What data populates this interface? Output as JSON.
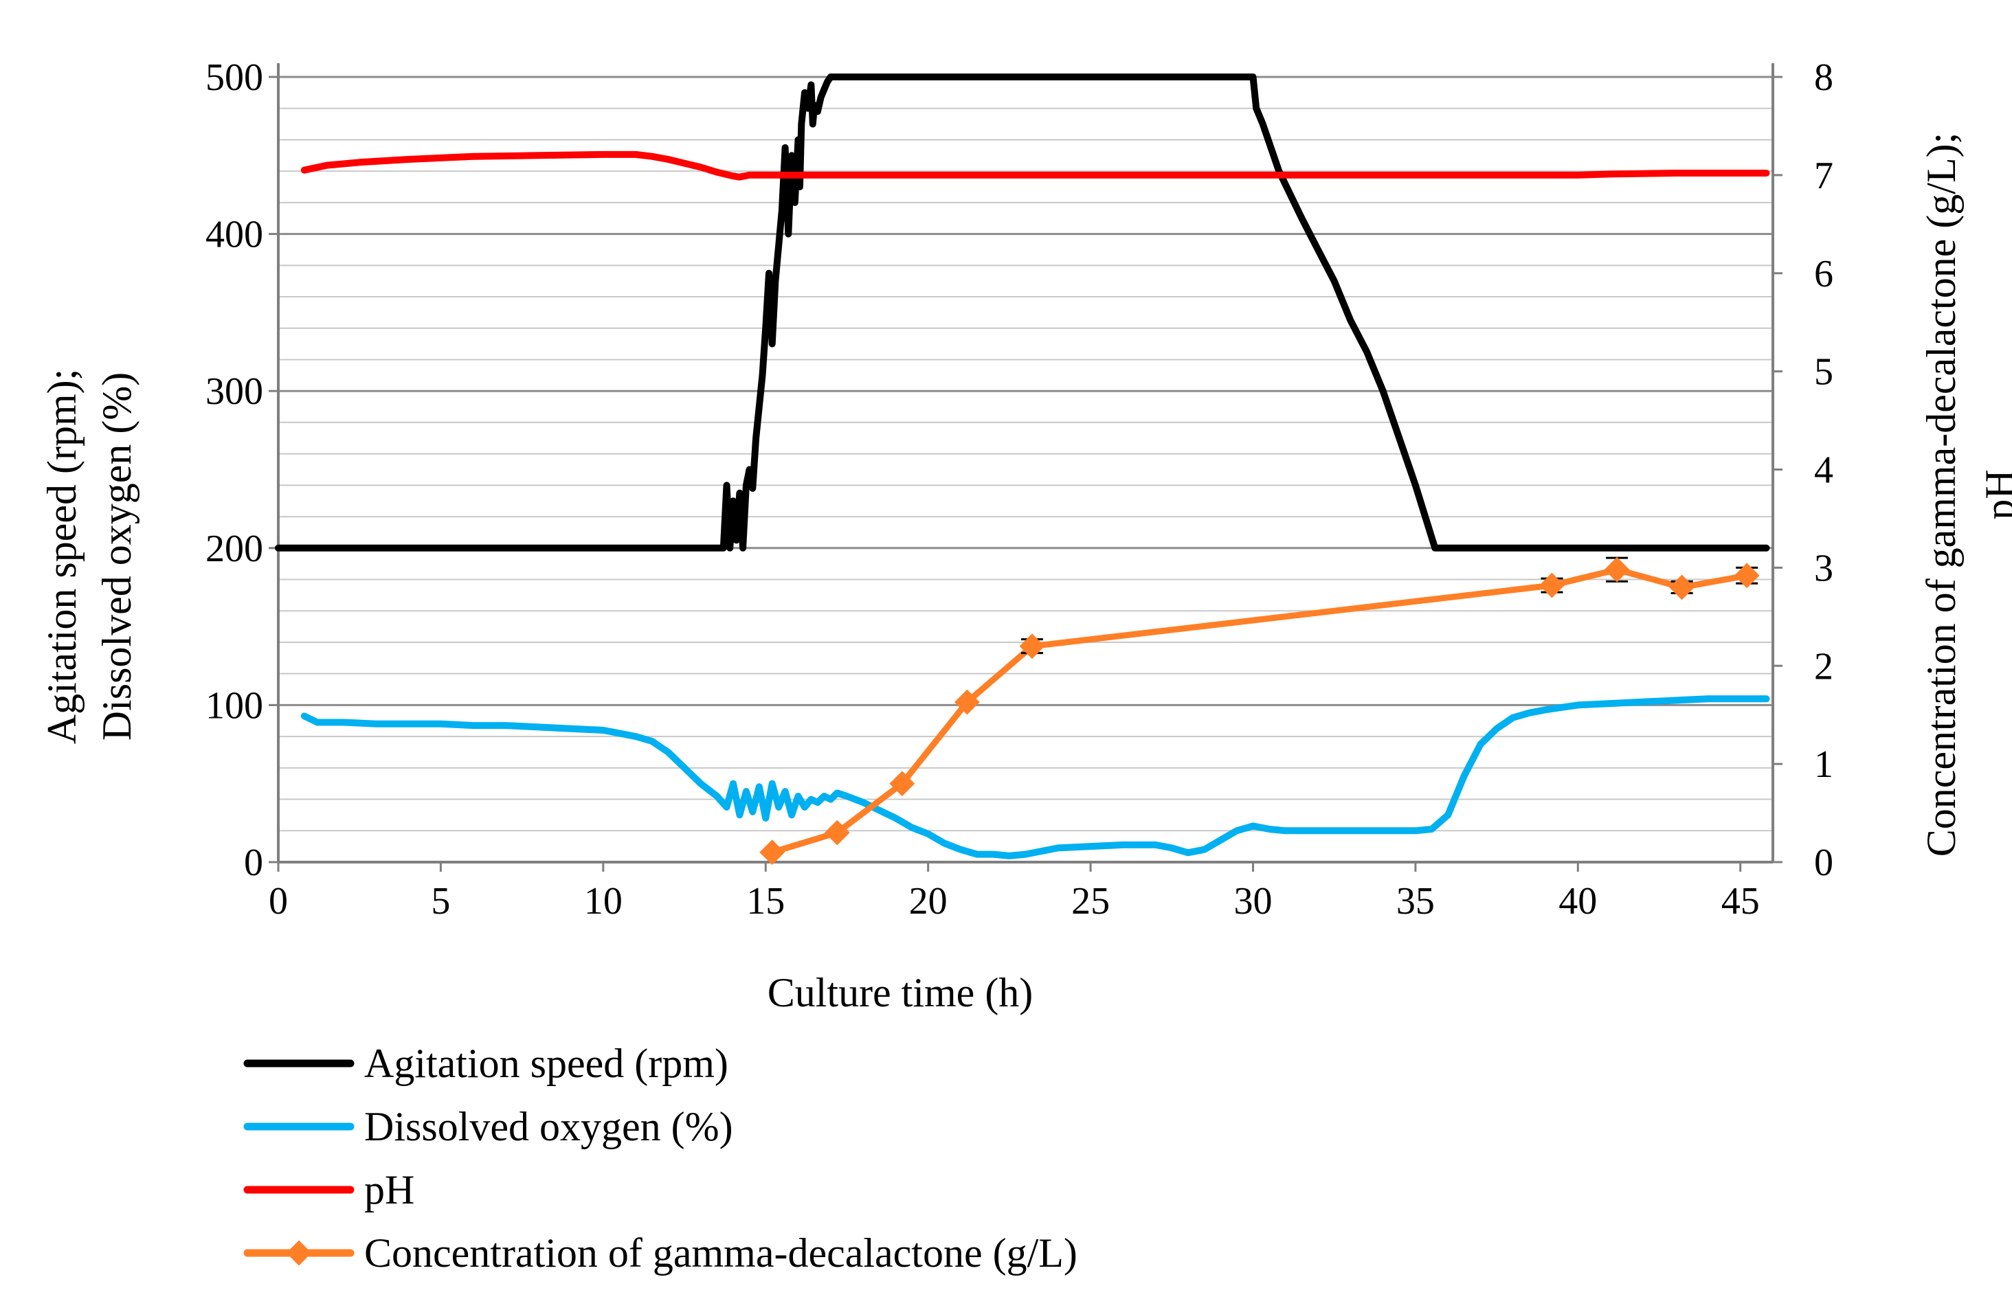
{
  "chart_data": {
    "type": "line",
    "title": "",
    "xlabel": "Culture time (h)",
    "ylabel_left": "Agitation speed (rpm); Dissolved oxygen (%)",
    "ylabel_left_lines": [
      "Agitation speed (rpm);",
      "Dissolved oxygen (%)"
    ],
    "ylabel_right": "Concentration of gamma-decalactone (g/L); pH",
    "ylabel_right_lines": [
      "Concentration of gamma-decalactone (g/L);",
      "pH"
    ],
    "xlim": [
      0,
      46
    ],
    "ylim_left": [
      0,
      500
    ],
    "ylim_right": [
      0,
      8
    ],
    "xticks": [
      0,
      5,
      10,
      15,
      20,
      25,
      30,
      35,
      40,
      45
    ],
    "yticks_left": [
      0,
      100,
      200,
      300,
      400,
      500
    ],
    "yticks_right": [
      0,
      1,
      2,
      3,
      4,
      5,
      6,
      7,
      8
    ],
    "grid": "horizontal",
    "legend_position": "bottom",
    "series": [
      {
        "name": "Agitation speed (rpm)",
        "axis": "left",
        "color": "#000000",
        "marker": "none",
        "x": [
          0,
          13.7,
          13.8,
          13.9,
          14.0,
          14.1,
          14.2,
          14.3,
          14.4,
          14.5,
          14.6,
          14.7,
          14.8,
          14.9,
          15.0,
          15.1,
          15.2,
          15.3,
          15.5,
          15.6,
          15.7,
          15.8,
          15.9,
          16.0,
          16.05,
          16.1,
          16.2,
          16.3,
          16.4,
          16.45,
          16.5,
          16.6,
          16.7,
          16.8,
          16.9,
          17.0,
          17.1,
          17.3,
          17.5,
          17.8,
          30.0,
          30.1,
          30.3,
          30.8,
          31.5,
          32.0,
          32.5,
          33.0,
          33.5,
          34.0,
          34.5,
          35.0,
          35.3,
          35.6,
          36.0,
          45.8
        ],
        "values": [
          200,
          200,
          240,
          200,
          230,
          205,
          235,
          200,
          240,
          250,
          238,
          270,
          290,
          310,
          340,
          375,
          330,
          370,
          415,
          455,
          400,
          450,
          420,
          460,
          430,
          470,
          490,
          480,
          495,
          470,
          482,
          478,
          487,
          492,
          497,
          500,
          500,
          500,
          500,
          500,
          500,
          480,
          470,
          440,
          410,
          390,
          370,
          345,
          325,
          300,
          270,
          240,
          220,
          200,
          200,
          200
        ]
      },
      {
        "name": "Dissolved oxygen (%)",
        "axis": "left",
        "color": "#00b0f0",
        "marker": "none",
        "x": [
          0.8,
          1.2,
          2,
          3,
          4,
          5,
          6,
          7,
          8,
          9,
          10,
          10.5,
          11,
          11.5,
          12,
          12.5,
          13,
          13.5,
          13.8,
          14.0,
          14.2,
          14.4,
          14.6,
          14.8,
          15.0,
          15.2,
          15.4,
          15.6,
          15.8,
          16.0,
          16.2,
          16.4,
          16.6,
          16.8,
          17.0,
          17.2,
          17.5,
          18,
          18.5,
          19,
          19.5,
          20,
          20.5,
          21,
          21.5,
          22,
          22.5,
          23,
          23.5,
          24,
          25,
          26,
          27,
          27.5,
          28,
          28.5,
          29,
          29.5,
          30,
          30.5,
          31,
          32,
          33,
          34,
          35,
          35.5,
          36,
          36.5,
          37,
          37.5,
          38,
          38.5,
          39,
          40,
          41,
          42,
          43,
          44,
          45,
          45.8
        ],
        "values": [
          93,
          89,
          89,
          88,
          88,
          88,
          87,
          87,
          86,
          85,
          84,
          82,
          80,
          77,
          70,
          60,
          50,
          42,
          35,
          50,
          30,
          45,
          32,
          48,
          28,
          50,
          35,
          45,
          30,
          42,
          35,
          40,
          38,
          42,
          40,
          44,
          42,
          38,
          33,
          28,
          22,
          18,
          12,
          8,
          5,
          5,
          4,
          5,
          7,
          9,
          10,
          11,
          11,
          9,
          6,
          8,
          14,
          20,
          23,
          21,
          20,
          20,
          20,
          20,
          20,
          21,
          30,
          55,
          75,
          85,
          92,
          95,
          97,
          100,
          101,
          102,
          103,
          104,
          104,
          104
        ]
      },
      {
        "name": "pH",
        "axis": "right",
        "color": "#ff0000",
        "marker": "none",
        "x": [
          0.8,
          1.5,
          2.5,
          4,
          6,
          8,
          10,
          11,
          11.5,
          12,
          12.5,
          13,
          13.5,
          14,
          14.2,
          14.5,
          15,
          16,
          18,
          20,
          25,
          30,
          35,
          40,
          41,
          43,
          45.8
        ],
        "values": [
          7.05,
          7.1,
          7.13,
          7.16,
          7.19,
          7.2,
          7.21,
          7.21,
          7.19,
          7.16,
          7.12,
          7.08,
          7.03,
          6.99,
          6.98,
          7.0,
          7.0,
          7.0,
          7.0,
          7.0,
          7.0,
          7.0,
          7.0,
          7.0,
          7.01,
          7.02,
          7.02
        ]
      },
      {
        "name": "Concentration of gamma-decalactone (g/L)",
        "axis": "right",
        "color": "#ff7f27",
        "marker": "diamond",
        "x": [
          15.2,
          17.2,
          19.2,
          21.2,
          23.2,
          39.2,
          41.2,
          43.2,
          45.2
        ],
        "values": [
          0.1,
          0.3,
          0.8,
          1.63,
          2.2,
          2.82,
          2.98,
          2.8,
          2.92
        ],
        "error": [
          0,
          0,
          0,
          0,
          0.07,
          0.07,
          0.12,
          0.06,
          0.08
        ]
      }
    ]
  }
}
